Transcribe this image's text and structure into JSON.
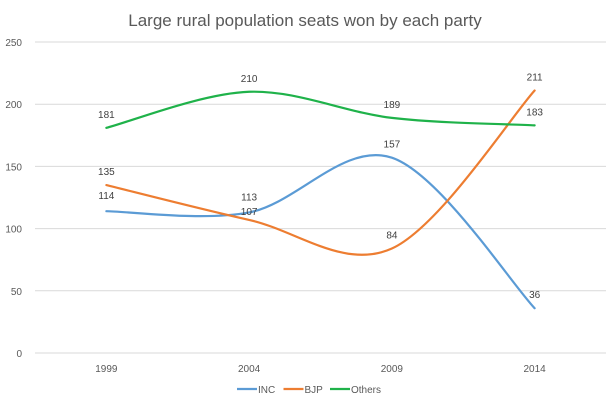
{
  "chart_data": {
    "type": "line",
    "title": "Large rural population seats won by each party",
    "xlabel": "",
    "ylabel": "",
    "categories": [
      "1999",
      "2004",
      "2009",
      "2014"
    ],
    "ylim": [
      0,
      250
    ],
    "yticks": [
      0,
      50,
      100,
      150,
      200,
      250
    ],
    "grid": true,
    "smooth": true,
    "legend_position": "bottom",
    "series": [
      {
        "name": "INC",
        "color": "#5b9bd5",
        "values": [
          114,
          113,
          157,
          36
        ]
      },
      {
        "name": "BJP",
        "color": "#ed7d31",
        "values": [
          135,
          107,
          84,
          211
        ]
      },
      {
        "name": "Others",
        "color": "#1fb24a",
        "values": [
          181,
          210,
          189,
          183
        ]
      }
    ]
  }
}
